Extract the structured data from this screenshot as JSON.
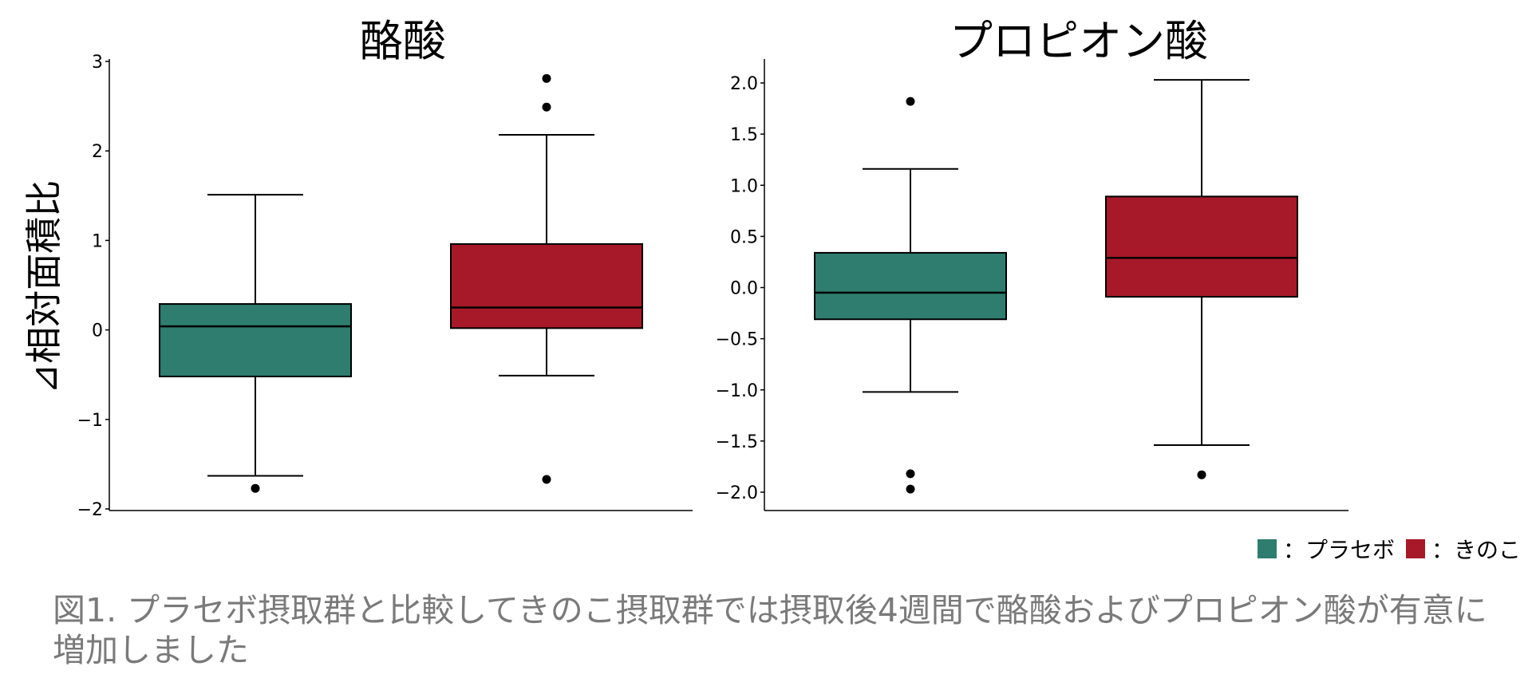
{
  "ylabel": "⊿相対面積比",
  "legend": {
    "items": [
      {
        "label": "：プラセボ",
        "color": "#2e7d6f"
      },
      {
        "label": "：きのこ",
        "color": "#a71928"
      }
    ]
  },
  "caption": "図1. プラセボ摂取群と比較してきのこ摂取群では摂取後4週間で酪酸およびプロピオン酸が有意に増加しました",
  "chart_data": [
    {
      "type": "box",
      "title": "酪酸",
      "ylim": [
        -2,
        3
      ],
      "yticks": [
        {
          "value": 3,
          "label": "3"
        },
        {
          "value": 2,
          "label": "2"
        },
        {
          "value": 1,
          "label": "1"
        },
        {
          "value": 0,
          "label": "0"
        },
        {
          "value": -1,
          "label": "−1"
        },
        {
          "value": -2,
          "label": "−2"
        }
      ],
      "groups": [
        {
          "name": "プラセボ",
          "color": "#2e7d6f",
          "whisker_low": -1.63,
          "q1": -0.52,
          "median": 0.04,
          "q3": 0.29,
          "whisker_high": 1.51,
          "outliers": [
            -1.77
          ]
        },
        {
          "name": "きのこ",
          "color": "#a71928",
          "whisker_low": -0.51,
          "q1": 0.02,
          "median": 0.25,
          "q3": 0.96,
          "whisker_high": 2.18,
          "outliers": [
            2.49,
            2.81,
            -1.67
          ]
        }
      ]
    },
    {
      "type": "box",
      "title": "プロピオン酸",
      "ylim": [
        -2.15,
        2.2
      ],
      "yticks": [
        {
          "value": 2.0,
          "label": "2.0"
        },
        {
          "value": 1.5,
          "label": "1.5"
        },
        {
          "value": 1.0,
          "label": "1.0"
        },
        {
          "value": 0.5,
          "label": "0.5"
        },
        {
          "value": 0.0,
          "label": "0.0"
        },
        {
          "value": -0.5,
          "label": "−0.5"
        },
        {
          "value": -1.0,
          "label": "−1.0"
        },
        {
          "value": -1.5,
          "label": "−1.5"
        },
        {
          "value": -2.0,
          "label": "−2.0"
        }
      ],
      "groups": [
        {
          "name": "プラセボ",
          "color": "#2e7d6f",
          "whisker_low": -1.02,
          "q1": -0.31,
          "median": -0.05,
          "q3": 0.34,
          "whisker_high": 1.16,
          "outliers": [
            1.82,
            -1.82,
            -1.97
          ]
        },
        {
          "name": "きのこ",
          "color": "#a71928",
          "whisker_low": -1.54,
          "q1": -0.09,
          "median": 0.29,
          "q3": 0.89,
          "whisker_high": 2.03,
          "outliers": [
            -1.83
          ]
        }
      ]
    }
  ]
}
